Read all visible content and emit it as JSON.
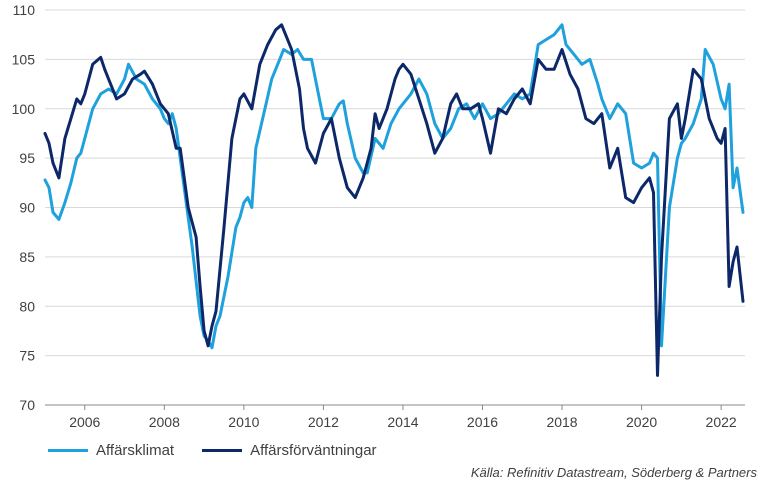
{
  "chart_data": {
    "type": "line",
    "title": "",
    "xlabel": "",
    "ylabel": "",
    "xlim": [
      2005.0,
      2022.6
    ],
    "ylim": [
      70,
      110
    ],
    "yticks": [
      70,
      75,
      80,
      85,
      90,
      95,
      100,
      105,
      110
    ],
    "xticks": [
      2006,
      2008,
      2010,
      2012,
      2014,
      2016,
      2018,
      2020,
      2022
    ],
    "grid": "horizontal",
    "legend_position": "bottom-left",
    "series": [
      {
        "name": "Affärsklimat",
        "color": "#1ea1dc",
        "x": [
          2005.0,
          2005.1,
          2005.2,
          2005.35,
          2005.5,
          2005.65,
          2005.8,
          2005.9,
          2006.0,
          2006.2,
          2006.4,
          2006.6,
          2006.8,
          2007.0,
          2007.1,
          2007.3,
          2007.5,
          2007.7,
          2007.9,
          2008.0,
          2008.1,
          2008.2,
          2008.3,
          2008.5,
          2008.7,
          2008.9,
          2009.0,
          2009.1,
          2009.2,
          2009.3,
          2009.4,
          2009.6,
          2009.8,
          2009.9,
          2010.0,
          2010.1,
          2010.2,
          2010.3,
          2010.5,
          2010.7,
          2010.9,
          2011.0,
          2011.2,
          2011.35,
          2011.5,
          2011.7,
          2011.9,
          2012.0,
          2012.2,
          2012.4,
          2012.5,
          2012.6,
          2012.8,
          2013.0,
          2013.1,
          2013.3,
          2013.5,
          2013.7,
          2013.9,
          2014.0,
          2014.2,
          2014.4,
          2014.6,
          2014.8,
          2015.0,
          2015.2,
          2015.4,
          2015.6,
          2015.8,
          2016.0,
          2016.2,
          2016.4,
          2016.6,
          2016.8,
          2017.0,
          2017.2,
          2017.4,
          2017.6,
          2017.8,
          2018.0,
          2018.1,
          2018.3,
          2018.5,
          2018.7,
          2018.9,
          2019.0,
          2019.2,
          2019.4,
          2019.6,
          2019.8,
          2020.0,
          2020.2,
          2020.3,
          2020.4,
          2020.5,
          2020.7,
          2020.9,
          2021.0,
          2021.1,
          2021.3,
          2021.5,
          2021.6,
          2021.8,
          2022.0,
          2022.1,
          2022.2,
          2022.3,
          2022.4,
          2022.55
        ],
        "y": [
          92.8,
          92.0,
          89.5,
          88.8,
          90.5,
          92.5,
          95.0,
          95.5,
          97.0,
          100.0,
          101.5,
          102.0,
          101.5,
          103.0,
          104.5,
          103.0,
          102.5,
          101.0,
          100.0,
          99.0,
          98.5,
          99.5,
          98.0,
          92.0,
          86.0,
          79.0,
          77.0,
          76.5,
          75.8,
          78.0,
          79.0,
          83.0,
          88.0,
          89.0,
          90.5,
          91.0,
          90.0,
          96.0,
          99.5,
          103.0,
          105.0,
          106.0,
          105.5,
          106.0,
          105.0,
          105.0,
          101.0,
          99.0,
          99.0,
          100.5,
          100.8,
          98.5,
          95.0,
          93.5,
          93.5,
          97.0,
          96.0,
          98.5,
          100.0,
          100.5,
          101.5,
          103.0,
          101.5,
          98.5,
          97.0,
          98.0,
          100.0,
          100.5,
          99.0,
          100.5,
          99.0,
          99.5,
          100.5,
          101.5,
          101.0,
          101.5,
          106.5,
          107.0,
          107.5,
          108.5,
          106.5,
          105.5,
          104.5,
          105.0,
          102.5,
          101.0,
          99.0,
          100.5,
          99.5,
          94.5,
          94.0,
          94.5,
          95.5,
          95.0,
          76.0,
          90.0,
          95.0,
          96.5,
          97.0,
          98.5,
          101.0,
          106.0,
          104.5,
          101.0,
          100.0,
          102.5,
          92.0,
          94.0,
          89.5
        ]
      },
      {
        "name": "Affärsförväntningar",
        "color": "#0c2868",
        "x": [
          2005.0,
          2005.1,
          2005.2,
          2005.35,
          2005.5,
          2005.65,
          2005.8,
          2005.9,
          2006.0,
          2006.2,
          2006.4,
          2006.5,
          2006.6,
          2006.8,
          2007.0,
          2007.2,
          2007.4,
          2007.5,
          2007.7,
          2007.9,
          2008.1,
          2008.3,
          2008.4,
          2008.6,
          2008.8,
          2008.9,
          2009.0,
          2009.1,
          2009.2,
          2009.3,
          2009.5,
          2009.7,
          2009.9,
          2010.0,
          2010.2,
          2010.4,
          2010.6,
          2010.8,
          2010.95,
          2011.1,
          2011.2,
          2011.4,
          2011.5,
          2011.6,
          2011.8,
          2011.9,
          2012.0,
          2012.2,
          2012.4,
          2012.6,
          2012.7,
          2012.8,
          2013.0,
          2013.2,
          2013.3,
          2013.4,
          2013.6,
          2013.8,
          2013.9,
          2014.0,
          2014.2,
          2014.4,
          2014.6,
          2014.8,
          2015.0,
          2015.2,
          2015.35,
          2015.5,
          2015.7,
          2015.9,
          2016.0,
          2016.2,
          2016.4,
          2016.6,
          2016.8,
          2017.0,
          2017.2,
          2017.4,
          2017.6,
          2017.8,
          2018.0,
          2018.2,
          2018.4,
          2018.6,
          2018.8,
          2019.0,
          2019.2,
          2019.4,
          2019.6,
          2019.8,
          2020.0,
          2020.2,
          2020.3,
          2020.4,
          2020.5,
          2020.7,
          2020.9,
          2021.0,
          2021.1,
          2021.3,
          2021.5,
          2021.7,
          2021.9,
          2022.0,
          2022.1,
          2022.2,
          2022.3,
          2022.4,
          2022.55
        ],
        "y": [
          97.5,
          96.5,
          94.5,
          93.0,
          97.0,
          99.0,
          101.0,
          100.5,
          101.5,
          104.5,
          105.2,
          104.0,
          103.0,
          101.0,
          101.5,
          103.0,
          103.5,
          103.8,
          102.5,
          100.5,
          99.5,
          96.0,
          96.0,
          90.0,
          87.0,
          82.0,
          77.5,
          76.0,
          78.0,
          79.5,
          88.0,
          97.0,
          101.0,
          101.5,
          100.0,
          104.5,
          106.5,
          108.0,
          108.5,
          107.0,
          106.0,
          102.0,
          98.0,
          96.0,
          94.5,
          96.0,
          97.5,
          99.0,
          95.0,
          92.0,
          91.5,
          91.0,
          93.0,
          96.0,
          99.5,
          98.0,
          100.0,
          103.0,
          104.0,
          104.5,
          103.5,
          101.0,
          98.5,
          95.5,
          97.0,
          100.5,
          101.5,
          100.0,
          100.0,
          100.5,
          99.0,
          95.5,
          100.0,
          99.5,
          101.0,
          102.0,
          100.5,
          105.0,
          104.0,
          104.0,
          106.0,
          103.5,
          102.0,
          99.0,
          98.5,
          99.5,
          94.0,
          96.0,
          91.0,
          90.5,
          92.0,
          93.0,
          91.5,
          73.0,
          85.0,
          99.0,
          100.5,
          97.0,
          99.0,
          104.0,
          103.0,
          99.0,
          97.0,
          96.5,
          98.0,
          82.0,
          84.5,
          86.0,
          80.5
        ]
      }
    ],
    "source": "Källa: Refinitiv Datastream, Söderberg & Partners"
  }
}
